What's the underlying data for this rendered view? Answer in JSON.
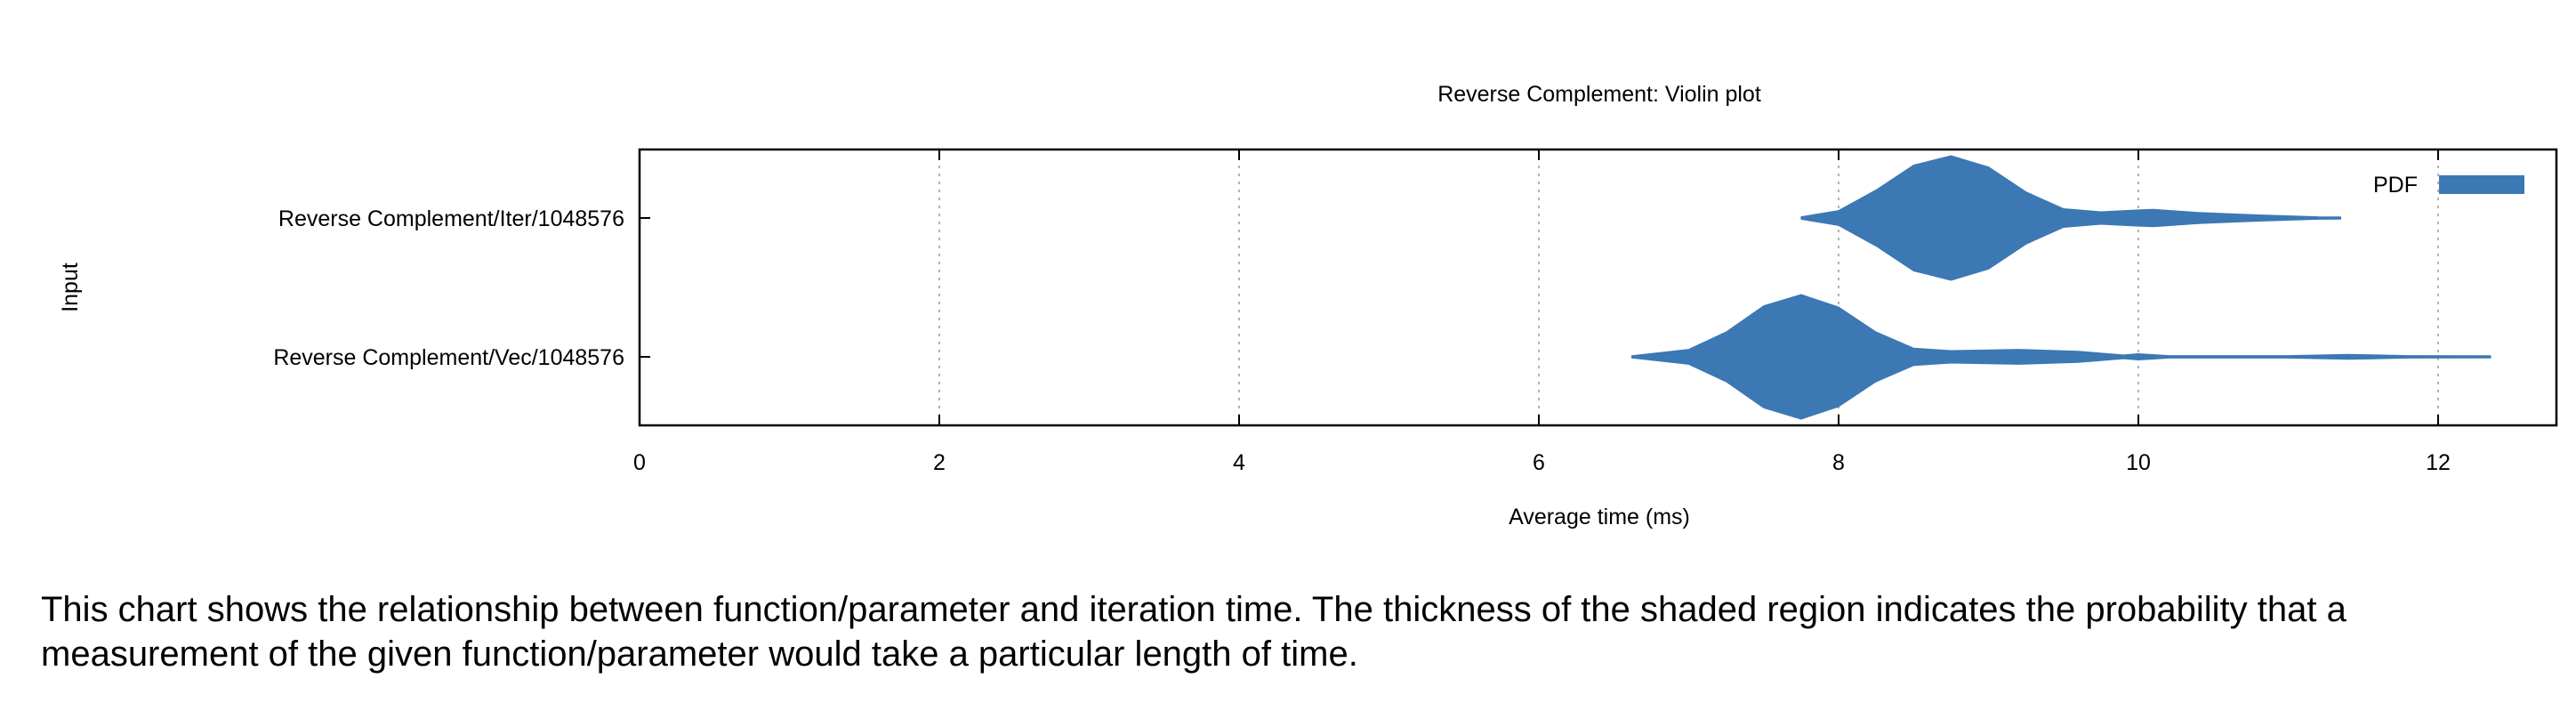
{
  "chart_data": {
    "type": "violin",
    "title": "Reverse Complement: Violin plot",
    "xlabel": "Average time (ms)",
    "ylabel": "Input",
    "xlim": [
      0,
      12.6
    ],
    "xticks": [
      0,
      2,
      4,
      6,
      8,
      10,
      12
    ],
    "grid": "vertical dotted",
    "legend": {
      "entry": "PDF",
      "position": "top-right",
      "color": "#3c78b4"
    },
    "categories": [
      "Reverse Complement/Iter/1048576",
      "Reverse Complement/Vec/1048576"
    ],
    "series": [
      {
        "category": "Reverse Complement/Iter/1048576",
        "density": [
          [
            7.75,
            0.02
          ],
          [
            8.0,
            0.12
          ],
          [
            8.25,
            0.45
          ],
          [
            8.5,
            0.85
          ],
          [
            8.75,
            1.0
          ],
          [
            9.0,
            0.82
          ],
          [
            9.25,
            0.42
          ],
          [
            9.5,
            0.15
          ],
          [
            9.75,
            0.1
          ],
          [
            10.0,
            0.13
          ],
          [
            10.1,
            0.14
          ],
          [
            10.4,
            0.09
          ],
          [
            10.8,
            0.05
          ],
          [
            11.2,
            0.02
          ],
          [
            11.35,
            0.01
          ]
        ]
      },
      {
        "category": "Reverse Complement/Vec/1048576",
        "density": [
          [
            6.62,
            0.01
          ],
          [
            7.0,
            0.12
          ],
          [
            7.25,
            0.4
          ],
          [
            7.5,
            0.82
          ],
          [
            7.75,
            1.0
          ],
          [
            8.0,
            0.8
          ],
          [
            8.25,
            0.4
          ],
          [
            8.5,
            0.14
          ],
          [
            8.75,
            0.1
          ],
          [
            9.2,
            0.12
          ],
          [
            9.6,
            0.09
          ],
          [
            9.9,
            0.03
          ],
          [
            10.0,
            0.05
          ],
          [
            10.2,
            0.02
          ],
          [
            10.5,
            0.02
          ],
          [
            11.0,
            0.02
          ],
          [
            11.4,
            0.04
          ],
          [
            11.8,
            0.02
          ],
          [
            12.35,
            0.01
          ]
        ]
      }
    ]
  },
  "caption": "This chart shows the relationship between function/parameter and iteration time. The thickness of the shaded region indicates the probability that a measurement of the given function/parameter would take a particular length of time."
}
